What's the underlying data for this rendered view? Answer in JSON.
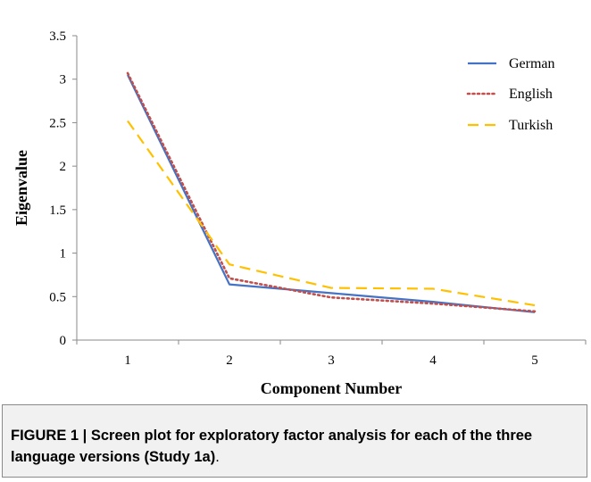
{
  "chart_data": {
    "type": "line",
    "title": "",
    "xlabel": "Component Number",
    "ylabel": "Eigenvalue",
    "categories": [
      "1",
      "2",
      "3",
      "4",
      "5"
    ],
    "x": [
      1,
      2,
      3,
      4,
      5
    ],
    "ylim": [
      0,
      3.5
    ],
    "yticks": [
      "0",
      "0.5",
      "1",
      "1.5",
      "2",
      "2.5",
      "3",
      "3.5"
    ],
    "grid": false,
    "legend_position": "top-right",
    "series": [
      {
        "name": "German",
        "values": [
          3.05,
          0.64,
          0.54,
          0.44,
          0.32
        ],
        "color": "#4472c4",
        "style": "solid"
      },
      {
        "name": "English",
        "values": [
          3.07,
          0.71,
          0.49,
          0.42,
          0.33
        ],
        "color": "#c0504d",
        "style": "dotted"
      },
      {
        "name": "Turkish",
        "values": [
          2.52,
          0.87,
          0.6,
          0.59,
          0.4
        ],
        "color": "#ffc000",
        "style": "dashed"
      }
    ]
  },
  "caption": {
    "label": "FIGURE 1 | Screen plot for exploratory factor analysis for each of the three language versions (Study 1a)",
    "tail": "."
  }
}
